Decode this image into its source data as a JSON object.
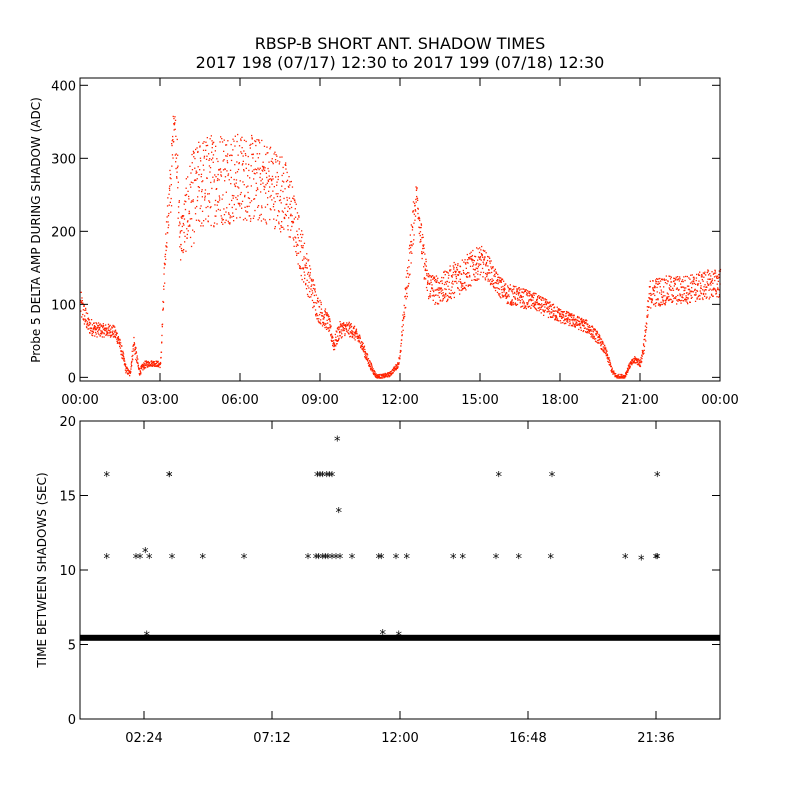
{
  "title_line1": "RBSP-B SHORT ANT. SHADOW TIMES",
  "title_line2": "2017 198 (07/17) 12:30 to 2017 199 (07/18) 12:30",
  "colors": {
    "amp_points": "#ff2200",
    "shadow_marks": "#000000",
    "axes": "#000000"
  },
  "chart_data": [
    {
      "type": "scatter",
      "ylabel": "Probe 5 DELTA AMP DURING SHADOW (ADC)",
      "xlabel": "",
      "x_unit": "hours",
      "xlim": [
        0,
        24
      ],
      "ylim": [
        -5,
        410
      ],
      "x_tick_labels": [
        "00:00",
        "03:00",
        "06:00",
        "09:00",
        "12:00",
        "15:00",
        "18:00",
        "21:00",
        "00:00"
      ],
      "x_tick_values": [
        0,
        3,
        6,
        9,
        12,
        15,
        18,
        21,
        24
      ],
      "y_tick_labels": [
        "0",
        "100",
        "200",
        "300",
        "400"
      ],
      "y_tick_values": [
        0,
        100,
        200,
        300,
        400
      ],
      "marker": "dot",
      "series": [
        {
          "x": [
            0.0,
            0.3,
            0.6,
            0.9,
            1.2,
            1.4,
            1.55,
            1.7,
            1.85,
            2.0,
            2.1,
            2.2,
            2.4,
            2.6,
            2.8,
            3.0,
            3.1,
            3.2,
            3.3,
            3.4,
            3.5,
            3.6,
            3.7,
            3.75,
            3.85,
            4.0,
            4.2,
            4.5,
            5.0,
            5.5,
            6.0,
            6.5,
            7.0,
            7.5,
            7.8,
            8.0,
            8.3,
            8.6,
            8.9,
            9.1,
            9.3,
            9.5,
            9.7,
            9.9,
            10.2,
            10.5,
            10.8,
            11.0,
            11.1,
            11.3,
            11.6,
            11.9,
            12.0,
            12.1,
            12.3,
            12.5,
            12.6,
            12.8,
            13.0,
            13.3,
            13.7,
            14.0,
            14.5,
            15.0,
            15.3,
            15.6,
            16.0,
            16.5,
            17.0,
            17.5,
            18.0,
            18.5,
            19.0,
            19.4,
            19.7,
            19.95,
            20.1,
            20.4,
            20.6,
            20.8,
            21.0,
            21.15,
            21.35,
            21.6,
            22.0,
            22.5,
            23.0,
            23.5,
            24.0
          ],
          "y": [
            100,
            72,
            66,
            65,
            65,
            55,
            35,
            12,
            5,
            48,
            28,
            8,
            18,
            20,
            20,
            18,
            100,
            190,
            230,
            270,
            360,
            310,
            210,
            195,
            200,
            230,
            245,
            265,
            272,
            275,
            275,
            272,
            268,
            255,
            240,
            215,
            170,
            130,
            95,
            85,
            75,
            45,
            65,
            68,
            65,
            50,
            22,
            8,
            2,
            2,
            5,
            18,
            35,
            80,
            150,
            220,
            255,
            180,
            130,
            120,
            125,
            135,
            145,
            160,
            150,
            130,
            115,
            110,
            105,
            95,
            85,
            78,
            70,
            55,
            35,
            8,
            2,
            2,
            18,
            25,
            20,
            50,
            115,
            118,
            120,
            120,
            123,
            128,
            130
          ],
          "spread": [
            20,
            12,
            10,
            9,
            9,
            9,
            8,
            5,
            4,
            12,
            8,
            5,
            5,
            4,
            4,
            4,
            20,
            20,
            35,
            45,
            20,
            40,
            40,
            35,
            35,
            55,
            65,
            65,
            65,
            65,
            60,
            60,
            58,
            55,
            50,
            40,
            35,
            25,
            18,
            15,
            12,
            10,
            12,
            10,
            10,
            8,
            6,
            4,
            3,
            3,
            3,
            4,
            6,
            15,
            25,
            30,
            15,
            25,
            22,
            20,
            22,
            25,
            25,
            22,
            18,
            15,
            14,
            14,
            12,
            12,
            10,
            9,
            9,
            8,
            6,
            4,
            3,
            3,
            4,
            5,
            5,
            12,
            20,
            20,
            20,
            20,
            20,
            20,
            20
          ]
        }
      ]
    },
    {
      "type": "scatter",
      "ylabel": "TIME BETWEEN SHADOWS (SEC)",
      "xlabel": "",
      "x_unit": "hours",
      "xlim": [
        0,
        24
      ],
      "ylim": [
        0,
        20
      ],
      "x_tick_labels": [
        "02:24",
        "07:12",
        "12:00",
        "16:48",
        "21:36"
      ],
      "x_tick_values": [
        2.4,
        7.2,
        12.0,
        16.8,
        21.6
      ],
      "y_tick_labels": [
        "0",
        "5",
        "10",
        "15",
        "20"
      ],
      "y_tick_values": [
        0,
        5,
        10,
        15,
        20
      ],
      "marker": "*",
      "baseline": {
        "y": 5.45,
        "x_start": 0.0,
        "x_end": 24.0
      },
      "series": [
        {
          "x": [
            1.0,
            2.1,
            2.25,
            2.45,
            2.6,
            3.35,
            3.45,
            4.6,
            6.15,
            8.55,
            8.85,
            8.95,
            9.1,
            9.2,
            9.3,
            9.45,
            9.6,
            9.75,
            10.2,
            11.2,
            11.3,
            11.85,
            12.25,
            14.0,
            14.35,
            15.6,
            16.45,
            17.65,
            20.45,
            21.05,
            21.6,
            21.65,
            8.9,
            9.0,
            9.1,
            9.25,
            9.35,
            9.45,
            1.0,
            3.35,
            15.7,
            17.7,
            21.65,
            9.65,
            9.7,
            2.5,
            11.35,
            11.95
          ],
          "y": [
            10.8,
            10.8,
            10.8,
            11.2,
            10.8,
            16.3,
            10.8,
            10.8,
            10.8,
            10.8,
            10.8,
            10.8,
            10.8,
            10.8,
            10.8,
            10.8,
            10.8,
            10.8,
            10.8,
            10.8,
            10.8,
            10.8,
            10.8,
            10.8,
            10.8,
            10.8,
            10.8,
            10.8,
            10.8,
            10.7,
            10.8,
            10.8,
            16.3,
            16.3,
            16.3,
            16.3,
            16.3,
            16.3,
            16.3,
            16.3,
            16.3,
            16.3,
            16.3,
            18.7,
            13.9,
            5.6,
            5.7,
            5.6
          ]
        }
      ]
    }
  ]
}
